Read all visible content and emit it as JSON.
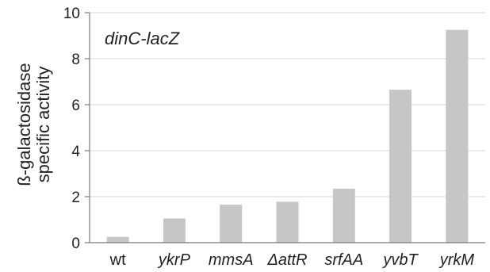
{
  "chart_data": {
    "type": "bar",
    "annotation": "dinC-lacZ",
    "ylabel_lines": [
      "ß-galactosidase",
      "specific activity"
    ],
    "xlabel": "",
    "categories": [
      "wt",
      "ykrP",
      "mmsA",
      "ΔattR",
      "srfAA",
      "yvbT",
      "yrkM"
    ],
    "category_italic": [
      false,
      true,
      true,
      true,
      true,
      true,
      true
    ],
    "values": [
      0.25,
      1.05,
      1.65,
      1.78,
      2.35,
      6.65,
      9.25
    ],
    "ylim": [
      0,
      10
    ],
    "yticks": [
      0,
      2,
      4,
      6,
      8,
      10
    ],
    "grid": true,
    "bar_color": "#c6c6c6"
  }
}
